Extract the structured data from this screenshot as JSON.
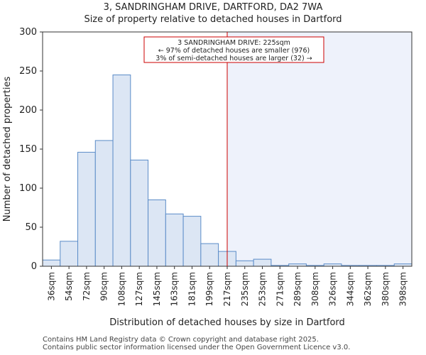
{
  "title": "3, SANDRINGHAM DRIVE, DARTFORD, DA2 7WA",
  "subtitle": "Size of property relative to detached houses in Dartford",
  "footer": {
    "line1": "Contains HM Land Registry data © Crown copyright and database right 2025.",
    "line2": "Contains public sector information licensed under the Open Government Licence v3.0."
  },
  "colors": {
    "bar_fill": "#dce6f4",
    "bar_stroke": "#5b8cc8",
    "highlight_region": "#eef2fb",
    "marker_line": "#cc0000",
    "annotation_border": "#cc0000"
  },
  "chart_data": {
    "type": "bar",
    "title": "3, SANDRINGHAM DRIVE, DARTFORD, DA2 7WA",
    "subtitle": "Size of property relative to detached houses in Dartford",
    "xlabel": "Distribution of detached houses by size in Dartford",
    "ylabel": "Number of detached properties",
    "ylim": [
      0,
      300
    ],
    "yticks": [
      0,
      50,
      100,
      150,
      200,
      250,
      300
    ],
    "categories": [
      "36sqm",
      "54sqm",
      "72sqm",
      "90sqm",
      "108sqm",
      "127sqm",
      "145sqm",
      "163sqm",
      "181sqm",
      "199sqm",
      "217sqm",
      "235sqm",
      "253sqm",
      "271sqm",
      "289sqm",
      "308sqm",
      "326sqm",
      "344sqm",
      "362sqm",
      "380sqm",
      "398sqm"
    ],
    "values": [
      8,
      32,
      146,
      161,
      245,
      136,
      85,
      67,
      64,
      29,
      19,
      7,
      9,
      1,
      3,
      1,
      3,
      1,
      1,
      1,
      3
    ],
    "marker_position": 10.5,
    "annotation": {
      "line1": "3 SANDRINGHAM DRIVE: 225sqm",
      "line2": "← 97% of detached houses are smaller (976)",
      "line3": "3% of semi-detached houses are larger (32) →"
    },
    "grid": false
  }
}
